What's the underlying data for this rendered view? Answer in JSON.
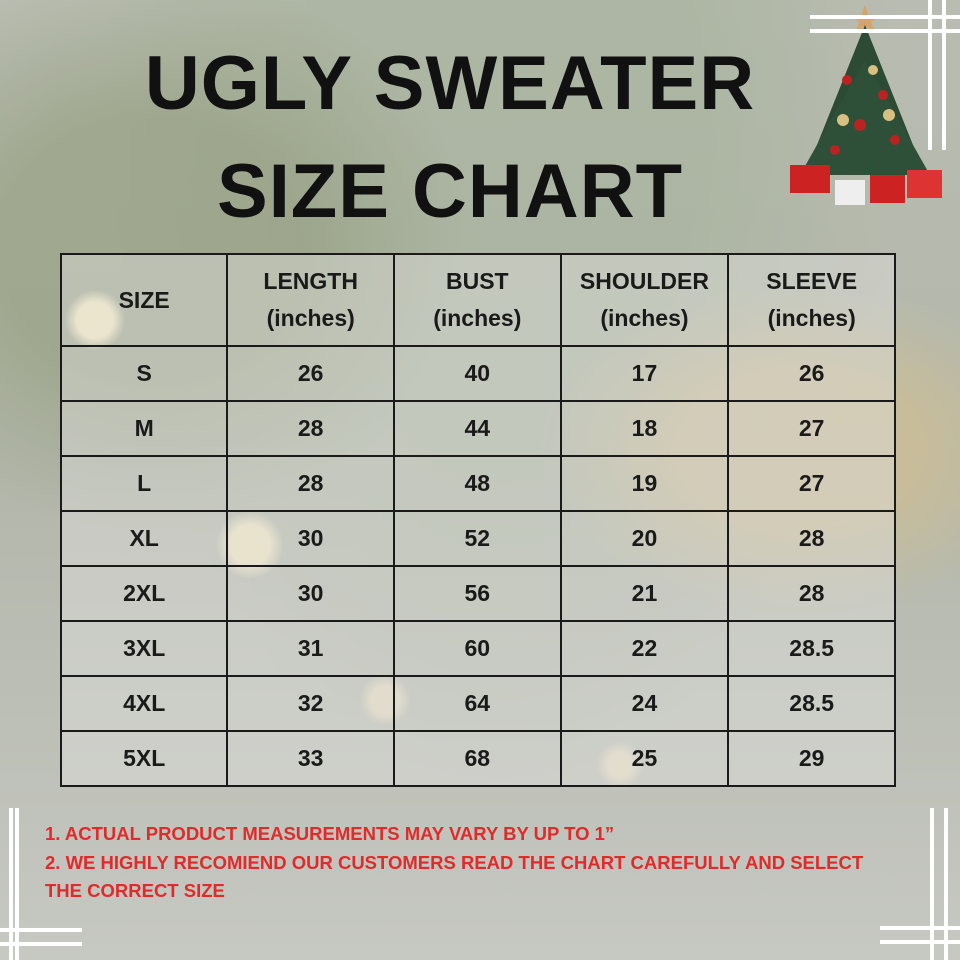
{
  "title_line1": "UGLY SWEATER",
  "title_line2": "SIZE CHART",
  "table": {
    "headers": [
      [
        "SIZE",
        ""
      ],
      [
        "LENGTH",
        "(inches)"
      ],
      [
        "BUST",
        "(inches)"
      ],
      [
        "SHOULDER",
        "(inches)"
      ],
      [
        "SLEEVE",
        "(inches)"
      ]
    ],
    "rows": [
      [
        "S",
        "26",
        "40",
        "17",
        "26"
      ],
      [
        "M",
        "28",
        "44",
        "18",
        "27"
      ],
      [
        "L",
        "28",
        "48",
        "19",
        "27"
      ],
      [
        "XL",
        "30",
        "52",
        "20",
        "28"
      ],
      [
        "2XL",
        "30",
        "56",
        "21",
        "28"
      ],
      [
        "3XL",
        "31",
        "60",
        "22",
        "28.5"
      ],
      [
        "4XL",
        "32",
        "64",
        "24",
        "28.5"
      ],
      [
        "5XL",
        "33",
        "68",
        "25",
        "29"
      ]
    ]
  },
  "notes": [
    "1. ACTUAL PRODUCT MEASUREMENTS MAY VARY BY UP TO 1”",
    "2. WE HIGHLY RECOMIEND OUR CUSTOMERS READ THE CHART CAREFULLY AND SELECT THE CORRECT SIZE"
  ],
  "colors": {
    "note_text": "#e02b2b",
    "title_text": "#111111"
  },
  "decoration": "christmas-tree-icon"
}
